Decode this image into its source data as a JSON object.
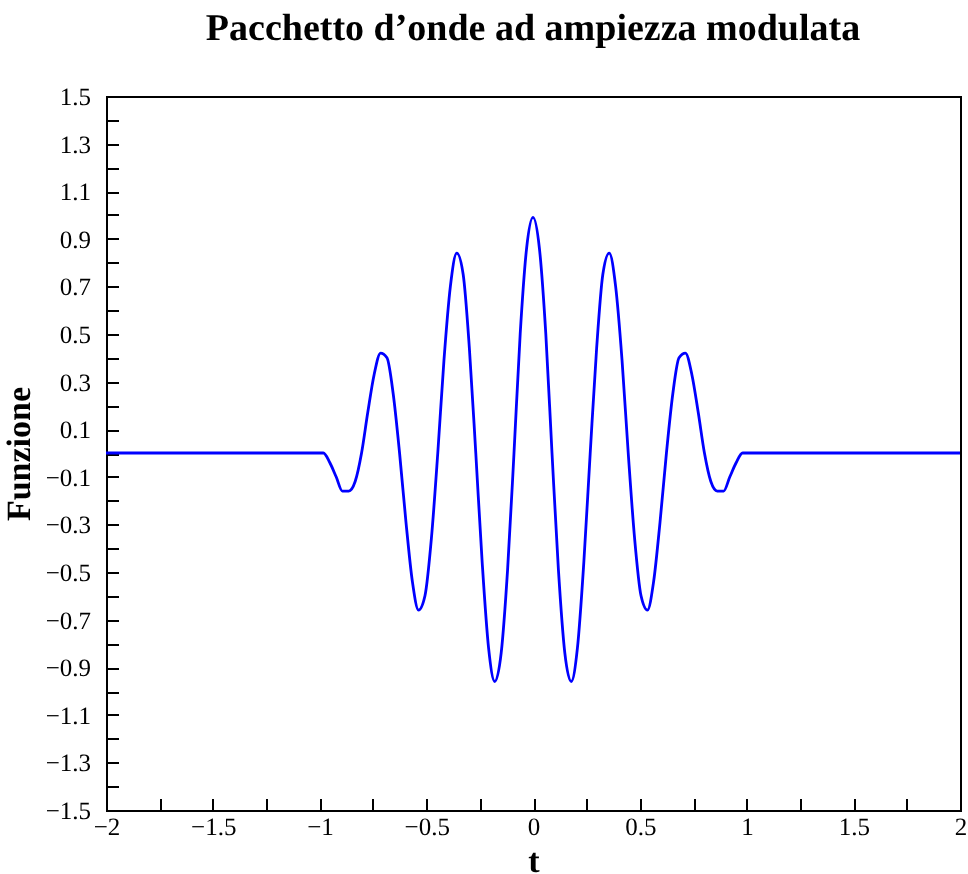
{
  "chart_data": {
    "type": "line",
    "title": "Pacchetto d’onde ad ampiezza modulata",
    "xlabel": "t",
    "ylabel": "Funzione",
    "x": [
      -2,
      -1,
      -0.982,
      -0.952,
      -0.922,
      -0.893,
      -0.863,
      -0.833,
      -0.803,
      -0.774,
      -0.744,
      -0.714,
      -0.684,
      -0.655,
      -0.625,
      -0.595,
      -0.565,
      -0.536,
      -0.506,
      -0.476,
      -0.446,
      -0.417,
      -0.387,
      -0.357,
      -0.327,
      -0.298,
      -0.268,
      -0.238,
      -0.208,
      -0.179,
      -0.149,
      -0.119,
      -0.089,
      -0.06,
      -0.03,
      0,
      0.03,
      0.06,
      0.089,
      0.119,
      0.149,
      0.179,
      0.208,
      0.238,
      0.268,
      0.298,
      0.327,
      0.357,
      0.387,
      0.417,
      0.446,
      0.476,
      0.506,
      0.536,
      0.565,
      0.595,
      0.625,
      0.655,
      0.684,
      0.714,
      0.744,
      0.774,
      0.803,
      0.833,
      0.863,
      0.893,
      0.922,
      0.952,
      0.982,
      1,
      2
    ],
    "series": [
      {
        "color": "#0000ff",
        "values": [
          0,
          0,
          0,
          -0.04,
          -0.1,
          -0.16,
          -0.16,
          -0.12,
          0,
          0.17,
          0.33,
          0.42,
          0.4,
          0.25,
          0,
          -0.29,
          -0.54,
          -0.66,
          -0.6,
          -0.36,
          0,
          0.39,
          0.7,
          0.84,
          0.75,
          0.44,
          0,
          -0.46,
          -0.82,
          -0.96,
          -0.84,
          -0.49,
          0,
          0.5,
          0.86,
          0.99,
          0.86,
          0.5,
          0,
          -0.49,
          -0.84,
          -0.96,
          -0.82,
          -0.46,
          0,
          0.44,
          0.75,
          0.84,
          0.7,
          0.39,
          0,
          -0.36,
          -0.6,
          -0.66,
          -0.54,
          -0.29,
          0,
          0.25,
          0.4,
          0.42,
          0.33,
          0.17,
          0,
          -0.12,
          -0.16,
          -0.16,
          -0.1,
          -0.04,
          0,
          0,
          0
        ]
      }
    ],
    "xlim": [
      -2,
      2
    ],
    "ylim": [
      -1.5,
      1.5
    ],
    "xticks": [
      -2,
      {
        "value": -1.75,
        "label": null
      },
      -1.5,
      {
        "value": -1.25,
        "label": null
      },
      -1,
      {
        "value": -0.75,
        "label": null
      },
      -0.5,
      {
        "value": -0.25,
        "label": null
      },
      0,
      {
        "value": 0.25,
        "label": null
      },
      0.5,
      {
        "value": 0.75,
        "label": null
      },
      1,
      {
        "value": 1.25,
        "label": null
      },
      1.5,
      {
        "value": 1.75,
        "label": null
      },
      2
    ],
    "yticks": [
      -1.5,
      {
        "value": -1.4,
        "label": null
      },
      -1.3,
      {
        "value": -1.2,
        "label": null
      },
      -1.1,
      {
        "value": -1.0,
        "label": null
      },
      -0.9,
      {
        "value": -0.8,
        "label": null
      },
      -0.7,
      {
        "value": -0.6,
        "label": null
      },
      -0.5,
      {
        "value": -0.4,
        "label": null
      },
      -0.3,
      {
        "value": -0.2,
        "label": null
      },
      -0.1,
      {
        "value": 0,
        "label": null
      },
      0.1,
      {
        "value": 0.2,
        "label": null
      },
      0.3,
      {
        "value": 0.4,
        "label": null
      },
      0.5,
      {
        "value": 0.6,
        "label": null
      },
      0.7,
      {
        "value": 0.8,
        "label": null
      },
      0.9,
      {
        "value": 1.0,
        "label": null
      },
      1.1,
      {
        "value": 1.2,
        "label": null
      },
      1.3,
      {
        "value": 1.4,
        "label": null
      },
      1.5
    ],
    "line_style": "solid"
  }
}
